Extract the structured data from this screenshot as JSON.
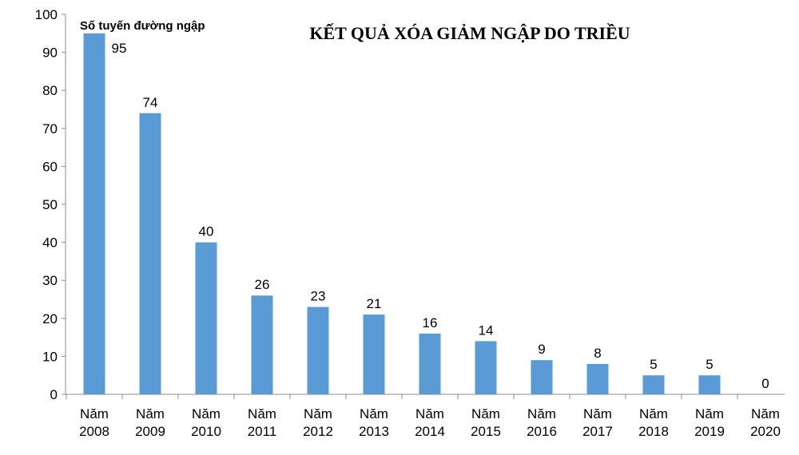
{
  "chart_data": {
    "type": "bar",
    "title": "KẾT QUẢ XÓA GIẢM NGẬP DO TRIỀU",
    "ylabel": "Số tuyến đường ngập",
    "xlabel": "",
    "ylim": [
      0,
      100
    ],
    "yticks": [
      0,
      10,
      20,
      30,
      40,
      50,
      60,
      70,
      80,
      90,
      100
    ],
    "categories": [
      [
        "Năm",
        "2008"
      ],
      [
        "Năm",
        "2009"
      ],
      [
        "Năm",
        "2010"
      ],
      [
        "Năm",
        "2011"
      ],
      [
        "Năm",
        "2012"
      ],
      [
        "Năm",
        "2013"
      ],
      [
        "Năm",
        "2014"
      ],
      [
        "Năm",
        "2015"
      ],
      [
        "Năm",
        "2016"
      ],
      [
        "Năm",
        "2017"
      ],
      [
        "Năm",
        "2018"
      ],
      [
        "Năm",
        "2019"
      ],
      [
        "Năm",
        "2020"
      ]
    ],
    "values": [
      95,
      74,
      40,
      26,
      23,
      21,
      16,
      14,
      9,
      8,
      5,
      5,
      0
    ],
    "bar_color": "#5b9bd5",
    "grid": false,
    "legend": "none"
  }
}
